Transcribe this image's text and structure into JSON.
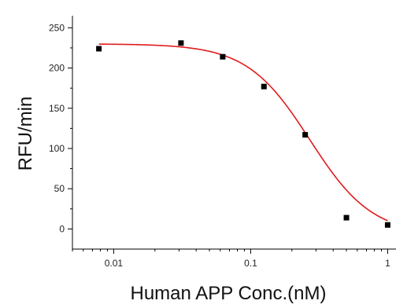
{
  "chart_data": {
    "type": "scatter",
    "xlabel": "Human APP Conc.(nM)",
    "ylabel": "RFU/min",
    "x_scale": "log",
    "xlim": [
      0.005,
      1.15
    ],
    "ylim": [
      -25,
      265
    ],
    "x_ticks": [
      0.01,
      0.1,
      1
    ],
    "x_tick_labels": [
      "0.01",
      "0.1",
      "1"
    ],
    "y_ticks": [
      0,
      50,
      100,
      150,
      200,
      250
    ],
    "y_tick_labels": [
      "0",
      "50",
      "100",
      "150",
      "200",
      "250"
    ],
    "grid": false,
    "legend": "none",
    "series": [
      {
        "marker": "square",
        "color": "#000000",
        "x": [
          0.0078,
          0.031,
          0.0625,
          0.125,
          0.25,
          0.5,
          1.0
        ],
        "y": [
          224,
          231,
          214,
          177,
          117,
          14,
          5
        ]
      },
      {
        "kind": "fitted-curve",
        "color": "#e01b1b",
        "model": "4-parameter logistic",
        "top": 230,
        "bottom": -8,
        "ic50": 0.27,
        "hill": 1.9,
        "x_range": [
          0.0078,
          1.0
        ]
      }
    ]
  }
}
